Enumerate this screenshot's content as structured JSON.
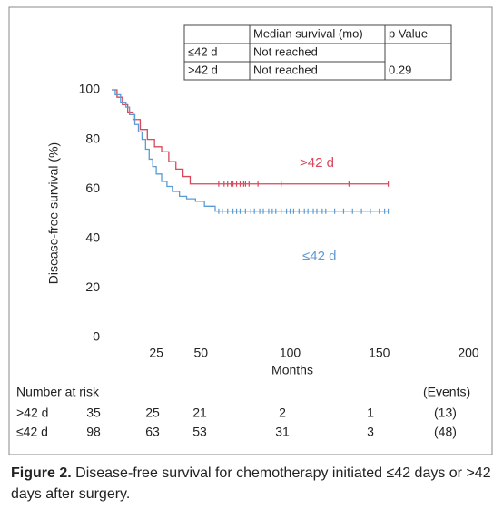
{
  "chart_data": {
    "type": "line",
    "step": true,
    "ylabel": "Disease-free survival (%)",
    "xlabel": "Months",
    "xlim": [
      0,
      200
    ],
    "xticks": [
      25,
      50,
      100,
      150,
      200
    ],
    "ylim": [
      0,
      100
    ],
    "yticks": [
      0,
      20,
      40,
      60,
      80,
      100
    ],
    "series": [
      {
        "name": ">42 d",
        "color": "#d9475a",
        "x": [
          0,
          3,
          6,
          9,
          12,
          16,
          20,
          24,
          28,
          32,
          36,
          40,
          44,
          155
        ],
        "values": [
          100,
          97,
          94,
          91,
          88,
          84,
          80,
          77,
          75,
          71,
          68,
          65,
          62,
          62
        ],
        "censor_x": [
          60,
          63,
          65,
          67,
          68,
          70,
          72,
          74,
          75,
          77,
          82,
          95,
          133,
          155
        ]
      },
      {
        "name": "≤42 d",
        "color": "#5b9bd5",
        "x": [
          0,
          2,
          5,
          8,
          10,
          13,
          15,
          17,
          19,
          21,
          23,
          25,
          28,
          31,
          34,
          38,
          42,
          47,
          52,
          58,
          155
        ],
        "values": [
          100,
          98,
          95,
          93,
          90,
          86,
          83,
          80,
          76,
          72,
          69,
          66,
          63,
          61,
          59,
          57,
          56,
          55,
          53,
          51,
          51
        ],
        "censor_x": [
          60,
          62,
          65,
          68,
          70,
          72,
          75,
          78,
          80,
          83,
          85,
          88,
          90,
          92,
          95,
          98,
          100,
          102,
          105,
          108,
          110,
          113,
          115,
          118,
          120,
          125,
          130,
          135,
          140,
          145,
          150,
          153,
          155
        ]
      }
    ]
  },
  "median_table": {
    "header": [
      "Median survival (mo)",
      "p Value"
    ],
    "rows": [
      [
        "≤42 d",
        "Not reached"
      ],
      [
        ">42 d",
        "Not reached"
      ]
    ],
    "p_value": "0.29"
  },
  "risk_table": {
    "title": "Number at risk",
    "events_header": "(Events)",
    "rows": [
      {
        "label": ">42 d",
        "counts": [
          "35",
          "25",
          "21",
          "2",
          "1"
        ],
        "events": "(13)"
      },
      {
        "label": "≤42 d",
        "counts": [
          "98",
          "63",
          "53",
          "31",
          "3"
        ],
        "events": "(48)"
      }
    ]
  },
  "caption": {
    "label": "Figure 2.",
    "text": "Disease-free survival for chemotherapy initiated ≤42 days or >42 days after surgery."
  }
}
